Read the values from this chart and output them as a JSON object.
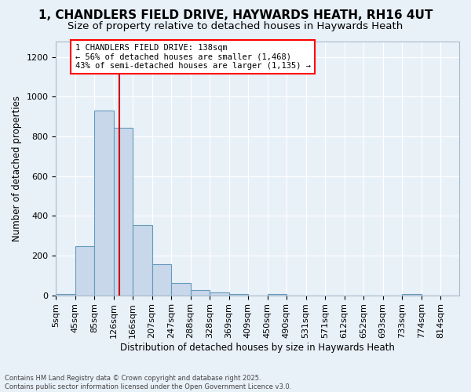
{
  "title_line1": "1, CHANDLERS FIELD DRIVE, HAYWARDS HEATH, RH16 4UT",
  "title_line2": "Size of property relative to detached houses in Haywards Heath",
  "xlabel": "Distribution of detached houses by size in Haywards Heath",
  "ylabel": "Number of detached properties",
  "bins": [
    5,
    45,
    85,
    126,
    166,
    207,
    247,
    288,
    328,
    369,
    409,
    450,
    490,
    531,
    571,
    612,
    652,
    693,
    733,
    774,
    814
  ],
  "bin_labels": [
    "5sqm",
    "45sqm",
    "85sqm",
    "126sqm",
    "166sqm",
    "207sqm",
    "247sqm",
    "288sqm",
    "328sqm",
    "369sqm",
    "409sqm",
    "450sqm",
    "490sqm",
    "531sqm",
    "571sqm",
    "612sqm",
    "652sqm",
    "693sqm",
    "733sqm",
    "774sqm",
    "814sqm"
  ],
  "bar_heights": [
    8,
    248,
    930,
    845,
    355,
    158,
    62,
    28,
    13,
    8,
    0,
    8,
    0,
    0,
    0,
    0,
    0,
    0,
    8,
    0,
    0
  ],
  "bar_color": "#c8d8ea",
  "bar_edgecolor": "#6699bb",
  "property_line_x": 138,
  "property_line_color": "#cc0000",
  "annotation_text": "1 CHANDLERS FIELD DRIVE: 138sqm\n← 56% of detached houses are smaller (1,468)\n43% of semi-detached houses are larger (1,135) →",
  "ylim": [
    0,
    1280
  ],
  "yticks": [
    0,
    200,
    400,
    600,
    800,
    1000,
    1200
  ],
  "bg_color": "#e8f0f8",
  "grid_color": "#d0dce8",
  "footer_line1": "Contains HM Land Registry data © Crown copyright and database right 2025.",
  "footer_line2": "Contains public sector information licensed under the Open Government Licence v3.0.",
  "annotation_fontsize": 7.5,
  "title_fontsize1": 11,
  "title_fontsize2": 9.5,
  "axis_label_fontsize": 8.5,
  "tick_fontsize": 8
}
